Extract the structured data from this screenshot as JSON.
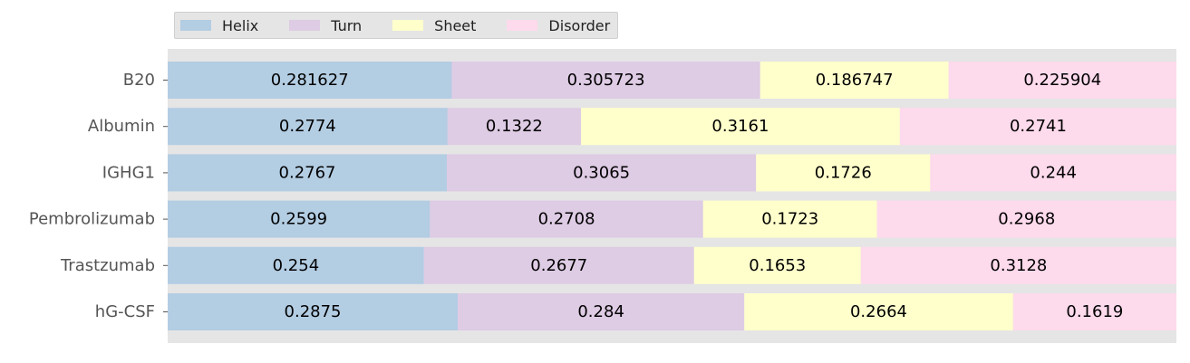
{
  "chart_data": {
    "type": "bar",
    "orientation": "horizontal",
    "stacked": true,
    "categories": [
      "B20",
      "Albumin",
      "IGHG1",
      "Pembrolizumab",
      "Trastzumab",
      "hG-CSF"
    ],
    "series": [
      {
        "name": "Helix",
        "color": "#b3cde3",
        "values": [
          0.281627,
          0.2774,
          0.2767,
          0.2599,
          0.254,
          0.2875
        ]
      },
      {
        "name": "Turn",
        "color": "#decbe4",
        "values": [
          0.305723,
          0.1322,
          0.3065,
          0.2708,
          0.2677,
          0.284
        ]
      },
      {
        "name": "Sheet",
        "color": "#ffffcc",
        "values": [
          0.186747,
          0.3161,
          0.1726,
          0.1723,
          0.1653,
          0.2664
        ]
      },
      {
        "name": "Disorder",
        "color": "#fddaec",
        "values": [
          0.225904,
          0.2741,
          0.244,
          0.2968,
          0.3128,
          0.1619
        ]
      }
    ],
    "xlim": [
      0,
      1
    ],
    "legend": "top-left",
    "grid": false,
    "background": "#e5e5e5"
  }
}
